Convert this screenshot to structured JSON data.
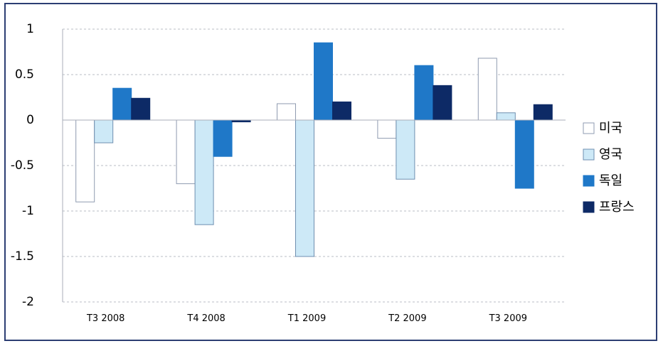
{
  "chart_data": {
    "type": "bar",
    "categories": [
      "T3 2008",
      "T4 2008",
      "T1 2009",
      "T2 2009",
      "T3 2009"
    ],
    "series": [
      {
        "name": "미국",
        "color": "#ffffff",
        "stroke": "#8f9bb0",
        "values": [
          -0.9,
          -0.7,
          0.18,
          -0.2,
          0.68
        ]
      },
      {
        "name": "영국",
        "color": "#cde9f7",
        "stroke": "#6f8fb0",
        "values": [
          -0.25,
          -1.15,
          -1.5,
          -0.65,
          0.08
        ]
      },
      {
        "name": "독일",
        "color": "#1f78c8",
        "stroke": "#1f78c8",
        "values": [
          0.35,
          -0.4,
          0.85,
          0.6,
          -0.75
        ]
      },
      {
        "name": "프랑스",
        "color": "#0d2a66",
        "stroke": "#0d2a66",
        "values": [
          0.24,
          -0.02,
          0.2,
          0.38,
          0.17
        ]
      }
    ],
    "yticks": [
      "1",
      "0.5",
      "0",
      "-0.5",
      "-1",
      "-1.5",
      "-2"
    ],
    "ylim": [
      -2,
      1
    ],
    "grid": true,
    "legend_position": "right"
  }
}
